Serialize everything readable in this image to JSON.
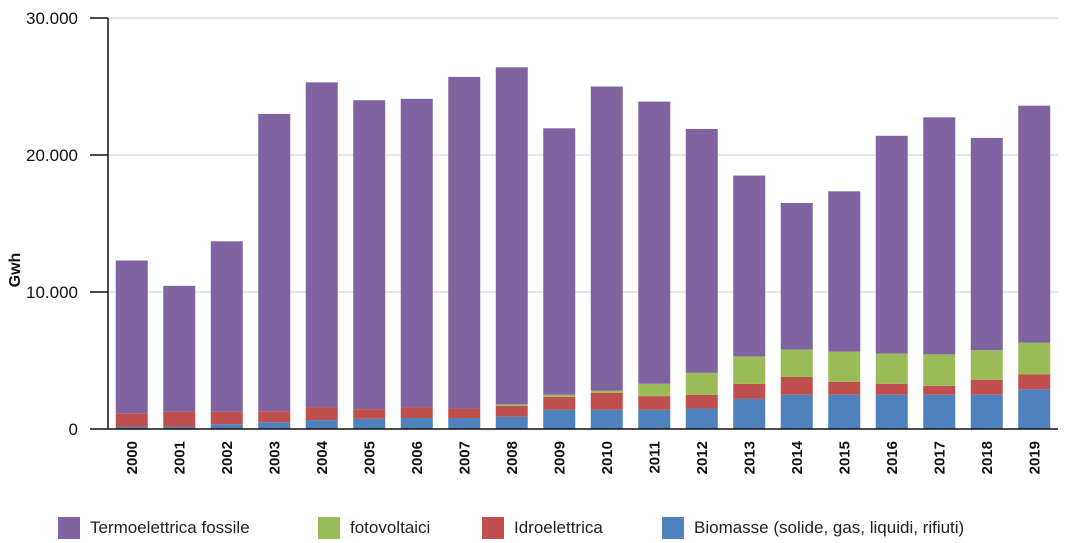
{
  "chart_data": {
    "type": "bar",
    "stacked": true,
    "title": "",
    "xlabel": "",
    "ylabel": "Gwh",
    "ylim": [
      0,
      30000
    ],
    "yticks": [
      "0",
      "10.000",
      "20.000",
      "30.000"
    ],
    "grid": true,
    "legend_position": "bottom",
    "categories": [
      "2000",
      "2001",
      "2002",
      "2003",
      "2004",
      "2005",
      "2006",
      "2007",
      "2008",
      "2009",
      "2010",
      "2011",
      "2012",
      "2013",
      "2014",
      "2015",
      "2016",
      "2017",
      "2018",
      "2019"
    ],
    "series": [
      {
        "name": "Biomasse (solide, gas, liquidi, rifiuti)",
        "color": "#4f81bd",
        "values": [
          150,
          150,
          350,
          500,
          650,
          750,
          800,
          800,
          900,
          1400,
          1400,
          1400,
          1500,
          2200,
          2500,
          2500,
          2500,
          2500,
          2500,
          2900
        ]
      },
      {
        "name": "Idroelettrica",
        "color": "#c0504d",
        "values": [
          1000,
          1100,
          900,
          800,
          950,
          700,
          800,
          700,
          800,
          950,
          1250,
          1000,
          1000,
          1100,
          1300,
          950,
          800,
          650,
          1100,
          1100
        ]
      },
      {
        "name": "fotovoltaici",
        "color": "#9bbb59",
        "values": [
          0,
          0,
          0,
          0,
          0,
          0,
          0,
          0,
          100,
          150,
          150,
          900,
          1600,
          2000,
          2000,
          2200,
          2200,
          2300,
          2150,
          2300
        ]
      },
      {
        "name": "Termoelettrica fossile",
        "color": "#8064a2",
        "values": [
          11150,
          9200,
          12450,
          21700,
          23700,
          22550,
          22500,
          24200,
          24600,
          19450,
          22200,
          20600,
          17800,
          13200,
          10700,
          11700,
          15900,
          17300,
          15500,
          17300
        ]
      }
    ],
    "legend_order": [
      "Termoelettrica fossile",
      "fotovoltaici",
      "Idroelettrica",
      "Biomasse (solide, gas, liquidi, rifiuti)"
    ]
  }
}
